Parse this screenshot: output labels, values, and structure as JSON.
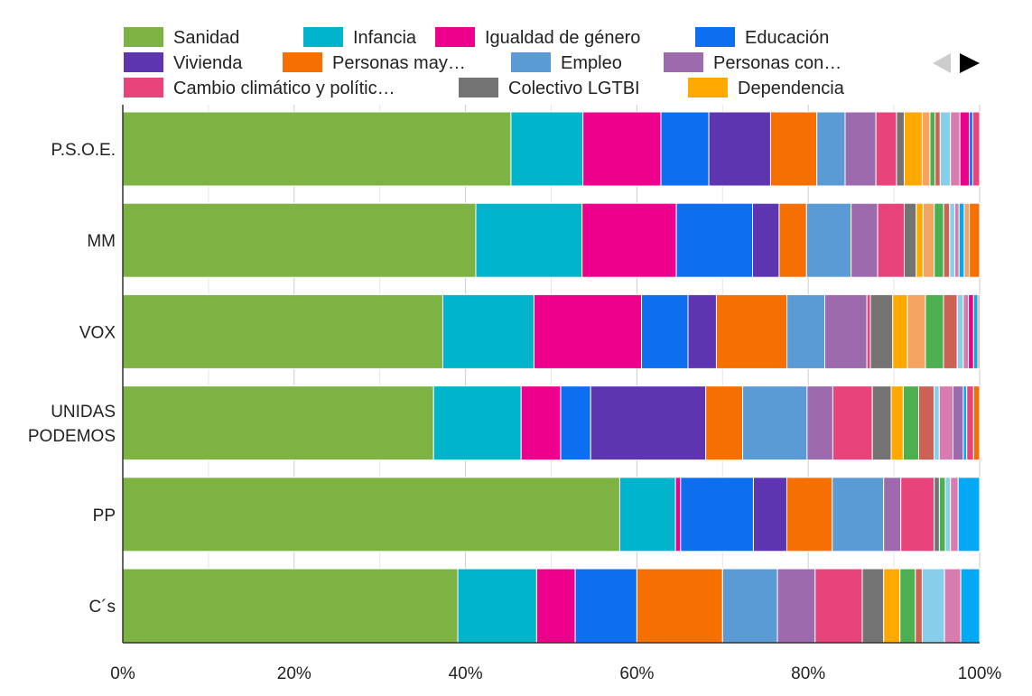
{
  "chart_data": {
    "type": "bar",
    "orientation": "horizontal",
    "stacked": "percent",
    "title": "",
    "xlabel": "",
    "ylabel": "",
    "xlim": [
      0,
      100
    ],
    "x_ticks": [
      "0%",
      "20%",
      "40%",
      "60%",
      "80%",
      "100%"
    ],
    "grid": true,
    "legend_position": "top",
    "categories": [
      "P.S.O.E.",
      "MM",
      "VOX",
      "UNIDAS PODEMOS",
      "PP",
      "C´s"
    ],
    "category_lines": [
      [
        "P.S.O.E."
      ],
      [
        "MM"
      ],
      [
        "VOX"
      ],
      [
        "UNIDAS",
        "PODEMOS"
      ],
      [
        "PP"
      ],
      [
        "C´s"
      ]
    ],
    "legend_items": [
      {
        "label": "Sanidad",
        "color": "#7cb342"
      },
      {
        "label": "Infancia",
        "color": "#00b4cc"
      },
      {
        "label": "Igualdad de género",
        "color": "#ec008c"
      },
      {
        "label": "Educación",
        "color": "#0d6ef0"
      },
      {
        "label": "Vivienda",
        "color": "#5e35b1"
      },
      {
        "label": "Personas may…",
        "color": "#f57000"
      },
      {
        "label": "Empleo",
        "color": "#5b9bd5"
      },
      {
        "label": "Personas con…",
        "color": "#9c6aad"
      },
      {
        "label": "Cambio climático y polític…",
        "color": "#e8437a"
      },
      {
        "label": "Colectivo LGTBI",
        "color": "#737373"
      },
      {
        "label": "Dependencia",
        "color": "#ffa800"
      }
    ],
    "extra_series_colors": [
      "#f4a460",
      "#4caf50",
      "#cd6155",
      "#87ceeb",
      "#d87cb0",
      "#03a9f4"
    ],
    "rows": [
      {
        "category": "P.S.O.E.",
        "segments": [
          {
            "value": 45.3,
            "color": "#7cb342"
          },
          {
            "value": 8.4,
            "color": "#00b4cc"
          },
          {
            "value": 9.1,
            "color": "#ec008c"
          },
          {
            "value": 5.6,
            "color": "#0d6ef0"
          },
          {
            "value": 7.2,
            "color": "#5e35b1"
          },
          {
            "value": 5.4,
            "color": "#f57000"
          },
          {
            "value": 3.3,
            "color": "#5b9bd5"
          },
          {
            "value": 3.6,
            "color": "#9c6aad"
          },
          {
            "value": 2.4,
            "color": "#e8437a"
          },
          {
            "value": 0.9,
            "color": "#737373"
          },
          {
            "value": 2.1,
            "color": "#ffa800"
          },
          {
            "value": 0.9,
            "color": "#f4a460"
          },
          {
            "value": 0.6,
            "color": "#4caf50"
          },
          {
            "value": 0.6,
            "color": "#cd6155"
          },
          {
            "value": 1.2,
            "color": "#87ceeb"
          },
          {
            "value": 1.1,
            "color": "#d87cb0"
          },
          {
            "value": 1.1,
            "color": "#ec008c"
          },
          {
            "value": 0.4,
            "color": "#0d6ef0"
          },
          {
            "value": 0.8,
            "color": "#e8437a"
          }
        ]
      },
      {
        "category": "MM",
        "segments": [
          {
            "value": 41.2,
            "color": "#7cb342"
          },
          {
            "value": 12.4,
            "color": "#00b4cc"
          },
          {
            "value": 11.0,
            "color": "#ec008c"
          },
          {
            "value": 8.9,
            "color": "#0d6ef0"
          },
          {
            "value": 3.1,
            "color": "#5e35b1"
          },
          {
            "value": 3.2,
            "color": "#f57000"
          },
          {
            "value": 5.2,
            "color": "#5b9bd5"
          },
          {
            "value": 3.1,
            "color": "#9c6aad"
          },
          {
            "value": 3.1,
            "color": "#e8437a"
          },
          {
            "value": 1.4,
            "color": "#737373"
          },
          {
            "value": 0.8,
            "color": "#ffa800"
          },
          {
            "value": 1.3,
            "color": "#f4a460"
          },
          {
            "value": 1.1,
            "color": "#4caf50"
          },
          {
            "value": 0.7,
            "color": "#cd6155"
          },
          {
            "value": 0.6,
            "color": "#87ceeb"
          },
          {
            "value": 0.5,
            "color": "#d87cb0"
          },
          {
            "value": 0.6,
            "color": "#03a9f4"
          },
          {
            "value": 0.6,
            "color": "#f4a460"
          },
          {
            "value": 1.2,
            "color": "#f57000"
          }
        ]
      },
      {
        "category": "VOX",
        "segments": [
          {
            "value": 37.2,
            "color": "#7cb342"
          },
          {
            "value": 10.6,
            "color": "#00b4cc"
          },
          {
            "value": 12.5,
            "color": "#ec008c"
          },
          {
            "value": 5.4,
            "color": "#0d6ef0"
          },
          {
            "value": 3.3,
            "color": "#5e35b1"
          },
          {
            "value": 8.2,
            "color": "#f57000"
          },
          {
            "value": 4.4,
            "color": "#5b9bd5"
          },
          {
            "value": 4.9,
            "color": "#9c6aad"
          },
          {
            "value": 0.4,
            "color": "#e8437a"
          },
          {
            "value": 2.6,
            "color": "#737373"
          },
          {
            "value": 1.7,
            "color": "#ffa800"
          },
          {
            "value": 2.1,
            "color": "#f4a460"
          },
          {
            "value": 2.1,
            "color": "#4caf50"
          },
          {
            "value": 1.6,
            "color": "#cd6155"
          },
          {
            "value": 0.7,
            "color": "#87ceeb"
          },
          {
            "value": 0.6,
            "color": "#d87cb0"
          },
          {
            "value": 0.6,
            "color": "#ec008c"
          },
          {
            "value": 0.5,
            "color": "#03a9f4"
          },
          {
            "value": 0.2,
            "color": "#f57000"
          }
        ]
      },
      {
        "category": "UNIDAS PODEMOS",
        "segments": [
          {
            "value": 36.2,
            "color": "#7cb342"
          },
          {
            "value": 10.2,
            "color": "#00b4cc"
          },
          {
            "value": 4.6,
            "color": "#ec008c"
          },
          {
            "value": 3.5,
            "color": "#0d6ef0"
          },
          {
            "value": 13.4,
            "color": "#5e35b1"
          },
          {
            "value": 4.3,
            "color": "#f57000"
          },
          {
            "value": 7.5,
            "color": "#5b9bd5"
          },
          {
            "value": 3.0,
            "color": "#9c6aad"
          },
          {
            "value": 4.6,
            "color": "#e8437a"
          },
          {
            "value": 2.2,
            "color": "#737373"
          },
          {
            "value": 1.4,
            "color": "#ffa800"
          },
          {
            "value": 1.8,
            "color": "#4caf50"
          },
          {
            "value": 1.8,
            "color": "#cd6155"
          },
          {
            "value": 0.6,
            "color": "#87ceeb"
          },
          {
            "value": 1.6,
            "color": "#d87cb0"
          },
          {
            "value": 1.2,
            "color": "#9c6aad"
          },
          {
            "value": 0.4,
            "color": "#03a9f4"
          },
          {
            "value": 0.8,
            "color": "#e8437a"
          },
          {
            "value": 0.7,
            "color": "#f57000"
          }
        ]
      },
      {
        "category": "PP",
        "segments": [
          {
            "value": 58.0,
            "color": "#7cb342"
          },
          {
            "value": 6.5,
            "color": "#00b4cc"
          },
          {
            "value": 0.6,
            "color": "#ec008c"
          },
          {
            "value": 8.5,
            "color": "#0d6ef0"
          },
          {
            "value": 3.9,
            "color": "#5e35b1"
          },
          {
            "value": 5.3,
            "color": "#f57000"
          },
          {
            "value": 6.0,
            "color": "#5b9bd5"
          },
          {
            "value": 2.0,
            "color": "#9c6aad"
          },
          {
            "value": 3.9,
            "color": "#e8437a"
          },
          {
            "value": 0.6,
            "color": "#737373"
          },
          {
            "value": 0.7,
            "color": "#4caf50"
          },
          {
            "value": 0.6,
            "color": "#87ceeb"
          },
          {
            "value": 0.9,
            "color": "#d87cb0"
          },
          {
            "value": 2.5,
            "color": "#03a9f4"
          }
        ]
      },
      {
        "category": "C´s",
        "segments": [
          {
            "value": 39.1,
            "color": "#7cb342"
          },
          {
            "value": 9.2,
            "color": "#00b4cc"
          },
          {
            "value": 4.5,
            "color": "#ec008c"
          },
          {
            "value": 7.2,
            "color": "#0d6ef0"
          },
          {
            "value": 10.0,
            "color": "#f57000"
          },
          {
            "value": 6.4,
            "color": "#5b9bd5"
          },
          {
            "value": 4.4,
            "color": "#9c6aad"
          },
          {
            "value": 5.5,
            "color": "#e8437a"
          },
          {
            "value": 2.5,
            "color": "#737373"
          },
          {
            "value": 1.9,
            "color": "#ffa800"
          },
          {
            "value": 1.8,
            "color": "#4caf50"
          },
          {
            "value": 0.8,
            "color": "#cd6155"
          },
          {
            "value": 2.6,
            "color": "#87ceeb"
          },
          {
            "value": 1.9,
            "color": "#d87cb0"
          },
          {
            "value": 2.2,
            "color": "#03a9f4"
          }
        ]
      }
    ]
  },
  "legend_nav": {
    "prev_icon": "triangle-left-icon",
    "next_icon": "triangle-right-icon",
    "prev_color": "#cccccc",
    "next_color": "#000000"
  }
}
